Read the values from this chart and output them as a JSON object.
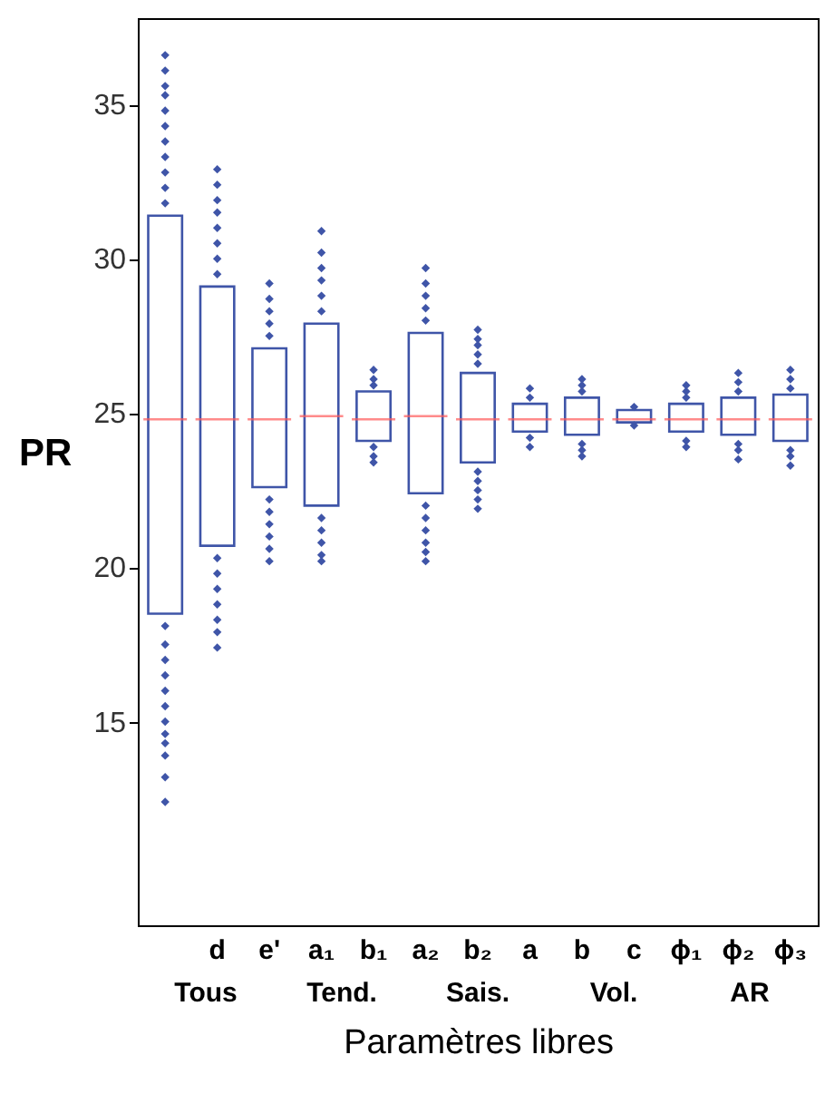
{
  "chart_data": {
    "type": "box",
    "xlabel": "Paramètres libres",
    "ylabel": "PR",
    "categories": [
      null,
      "d",
      "e'",
      "a₁",
      "b₁",
      "a₂",
      "b₂",
      "a",
      "b",
      "c",
      "ϕ₁",
      "ϕ₂",
      "ϕ₃"
    ],
    "ylim": [
      8.4,
      37.8
    ],
    "yticks": [
      15,
      20,
      25,
      30,
      35
    ],
    "grid": false,
    "marker": "diamond",
    "series": [
      {
        "color": "#3f55a8",
        "boxes": [
          {
            "low": 18.5,
            "q1": 18.5,
            "median": 24.8,
            "q3": 31.4,
            "high": 31.4,
            "outliers": [
              31.8,
              32.3,
              32.8,
              33.3,
              33.8,
              34.3,
              34.8,
              35.3,
              35.6,
              36.1,
              36.6,
              18.1,
              17.5,
              17.0,
              16.5,
              16.0,
              15.5,
              15.0,
              14.6,
              14.3,
              13.9,
              13.2,
              12.4
            ]
          },
          {
            "low": 20.7,
            "q1": 20.7,
            "median": 24.8,
            "q3": 29.1,
            "high": 29.1,
            "outliers": [
              29.5,
              30.0,
              30.5,
              31.0,
              31.5,
              31.9,
              32.4,
              32.9,
              20.3,
              19.8,
              19.3,
              18.8,
              18.3,
              17.9,
              17.4
            ]
          },
          {
            "low": 22.6,
            "q1": 22.6,
            "median": 24.8,
            "q3": 27.1,
            "high": 27.1,
            "outliers": [
              27.5,
              27.9,
              28.3,
              28.7,
              29.2,
              22.2,
              21.8,
              21.4,
              21.0,
              20.6,
              20.2
            ]
          },
          {
            "low": 22.0,
            "q1": 22.0,
            "median": 24.9,
            "q3": 27.9,
            "high": 27.9,
            "outliers": [
              28.3,
              28.8,
              29.3,
              29.7,
              30.2,
              30.9,
              21.6,
              21.2,
              20.8,
              20.4,
              20.2
            ]
          },
          {
            "low": 24.1,
            "q1": 24.1,
            "median": 24.8,
            "q3": 25.7,
            "high": 25.7,
            "outliers": [
              25.9,
              26.1,
              26.4,
              23.9,
              23.6,
              23.4
            ]
          },
          {
            "low": 22.4,
            "q1": 22.4,
            "median": 24.9,
            "q3": 27.6,
            "high": 27.6,
            "outliers": [
              28.0,
              28.4,
              28.8,
              29.2,
              29.7,
              22.0,
              21.6,
              21.2,
              20.8,
              20.5,
              20.2
            ]
          },
          {
            "low": 23.4,
            "q1": 23.4,
            "median": 24.8,
            "q3": 26.3,
            "high": 26.3,
            "outliers": [
              26.6,
              26.9,
              27.2,
              27.4,
              27.7,
              23.1,
              22.8,
              22.5,
              22.2,
              21.9
            ]
          },
          {
            "low": 24.4,
            "q1": 24.4,
            "median": 24.8,
            "q3": 25.3,
            "high": 25.3,
            "outliers": [
              25.5,
              25.8,
              24.2,
              23.9
            ]
          },
          {
            "low": 24.3,
            "q1": 24.3,
            "median": 24.8,
            "q3": 25.5,
            "high": 25.5,
            "outliers": [
              25.7,
              25.9,
              26.1,
              24.0,
              23.8,
              23.6
            ]
          },
          {
            "low": 24.7,
            "q1": 24.7,
            "median": 24.8,
            "q3": 25.1,
            "high": 25.1,
            "outliers": [
              25.2,
              24.6
            ]
          },
          {
            "low": 24.4,
            "q1": 24.4,
            "median": 24.8,
            "q3": 25.3,
            "high": 25.3,
            "outliers": [
              25.5,
              25.7,
              25.9,
              24.1,
              23.9
            ]
          },
          {
            "low": 24.3,
            "q1": 24.3,
            "median": 24.8,
            "q3": 25.5,
            "high": 25.5,
            "outliers": [
              25.7,
              26.0,
              26.3,
              24.0,
              23.8,
              23.5
            ]
          },
          {
            "low": 24.1,
            "q1": 24.1,
            "median": 24.8,
            "q3": 25.6,
            "high": 25.6,
            "outliers": [
              25.8,
              26.1,
              26.4,
              23.8,
              23.6,
              23.3
            ]
          }
        ]
      }
    ],
    "annotations": [
      "Tous",
      "Tend.",
      "Sais.",
      "Vol.",
      "AR"
    ]
  }
}
